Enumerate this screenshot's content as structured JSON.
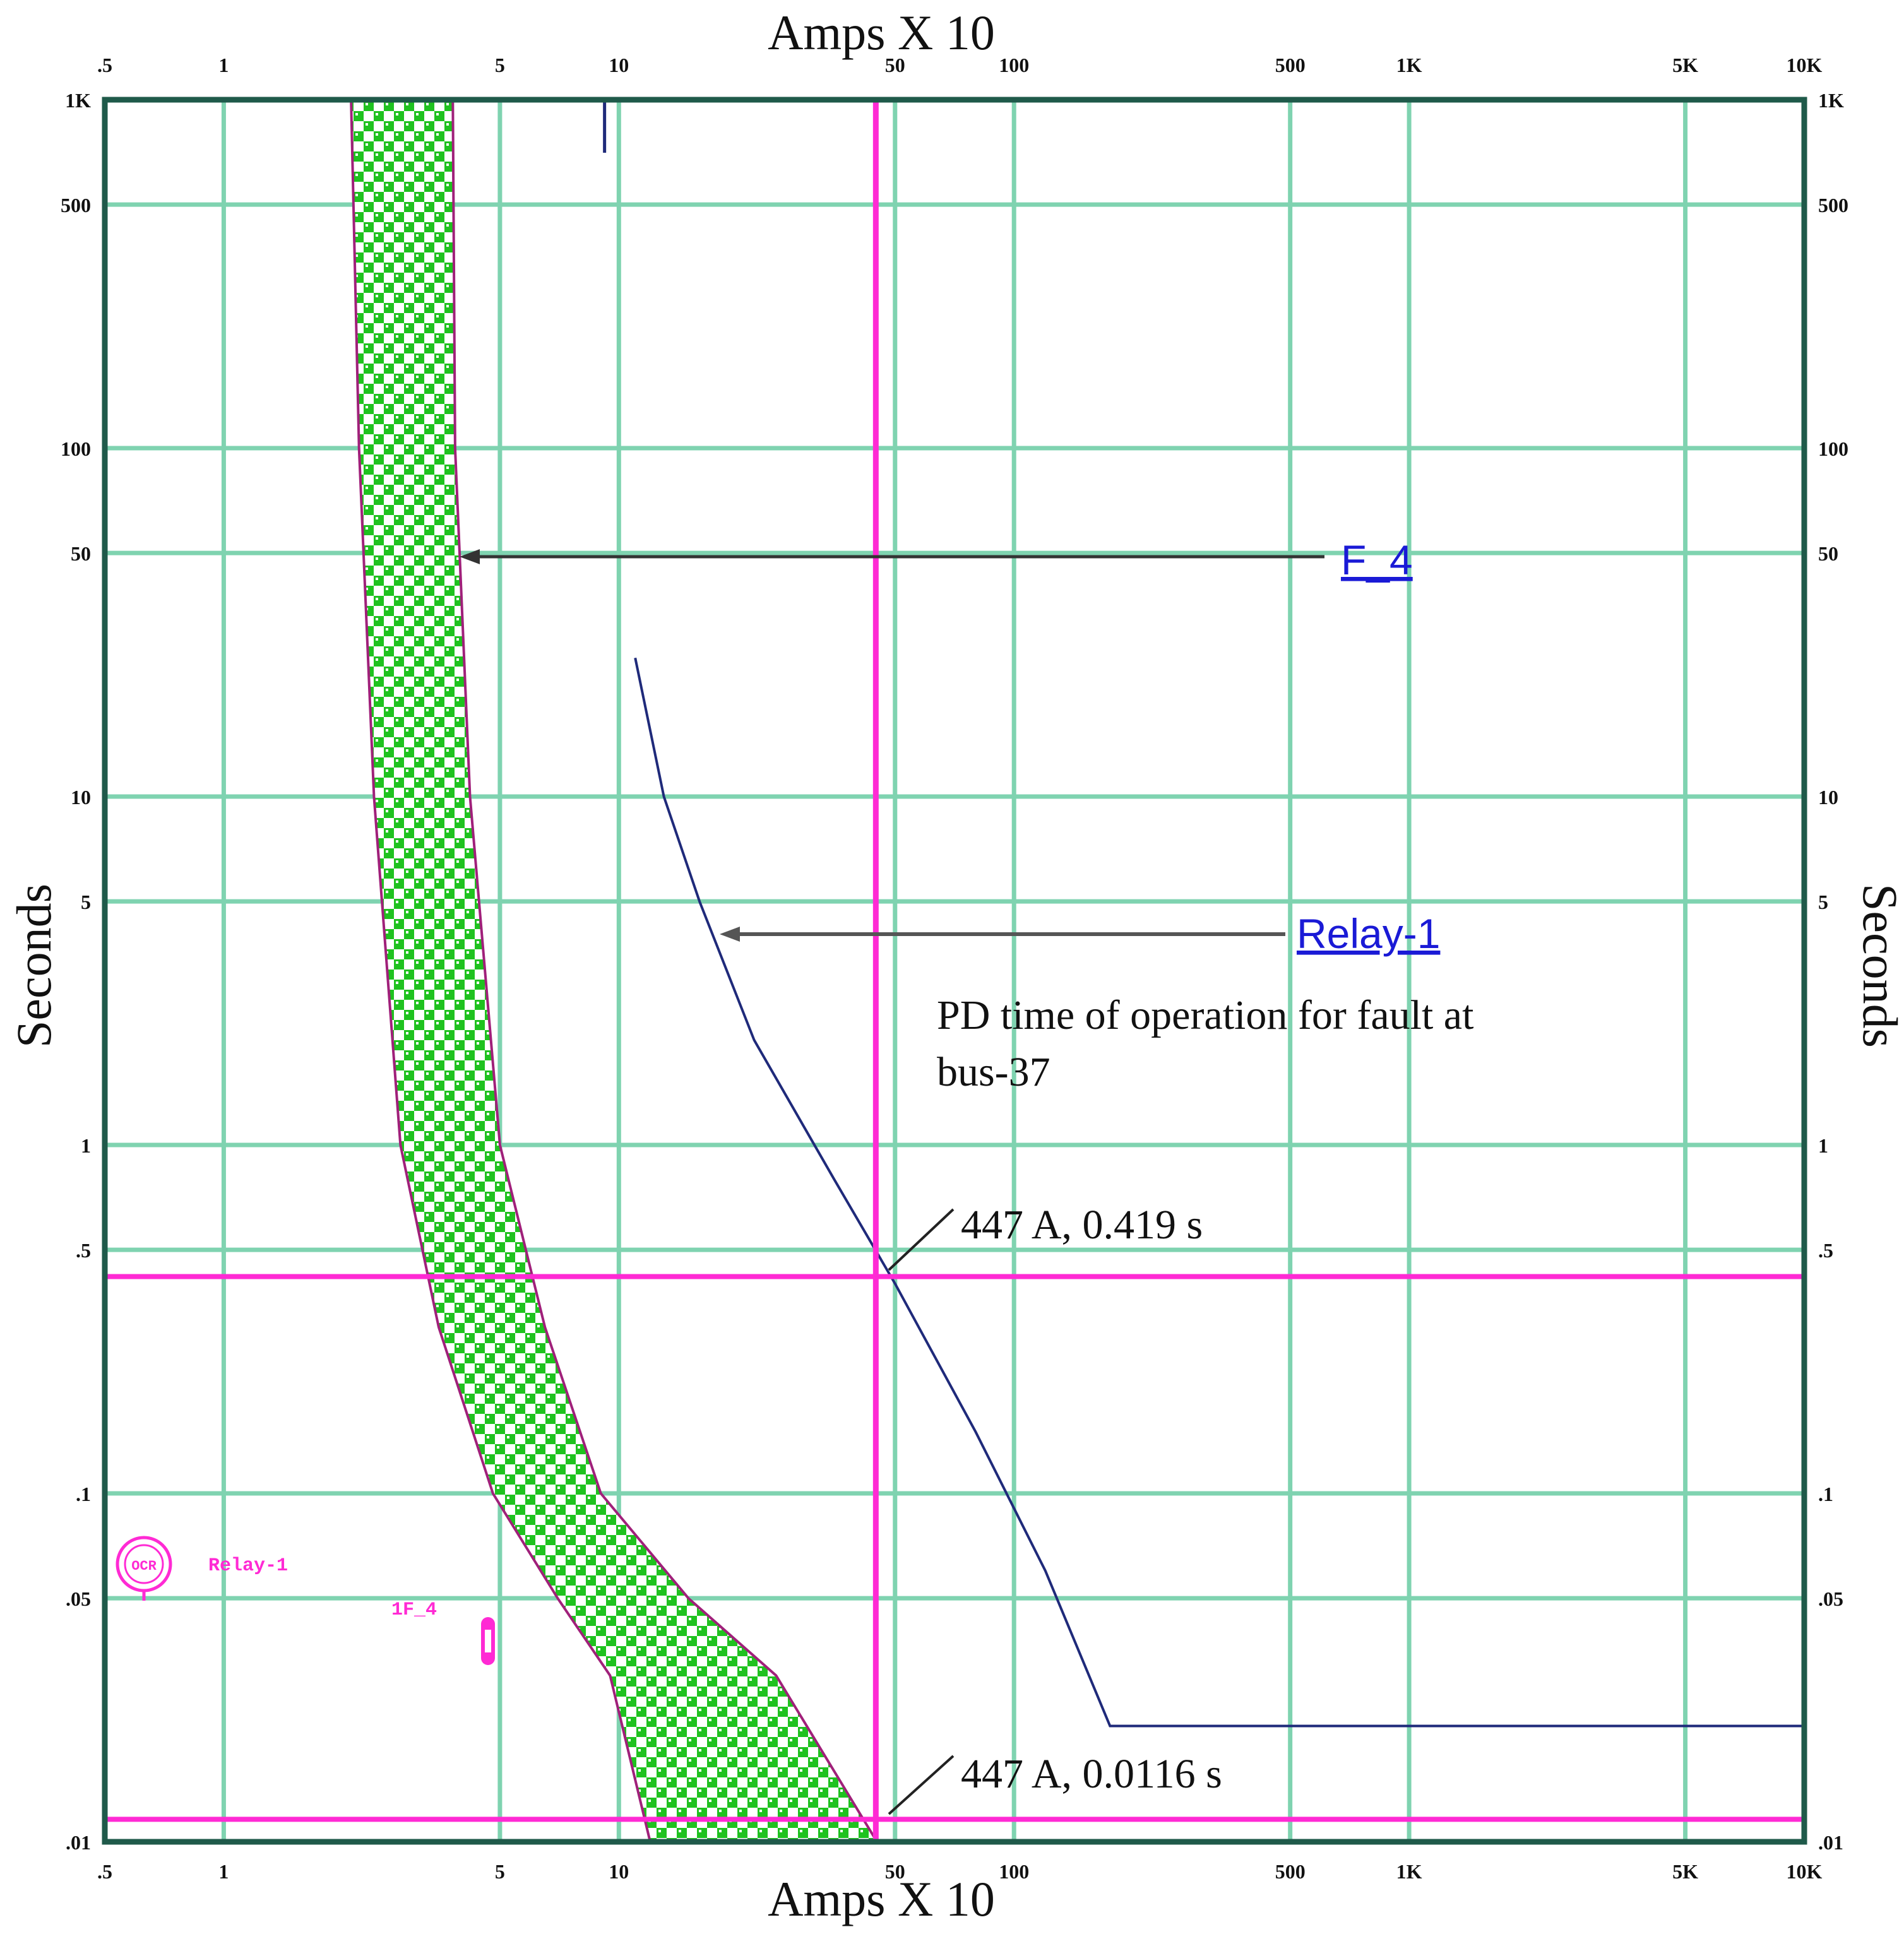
{
  "chart_data": {
    "type": "line",
    "scale": "log-log",
    "xlabel": "Amps  X  10",
    "ylabel": "Seconds",
    "xlim": [
      0.5,
      10000
    ],
    "ylim": [
      0.01,
      1000
    ],
    "grid": true,
    "x_ticks": [
      0.5,
      1,
      5,
      10,
      50,
      100,
      500,
      1000,
      5000,
      10000
    ],
    "x_tick_labels": [
      ".5",
      "1",
      "5",
      "10",
      "50",
      "100",
      "500",
      "1K",
      "5K",
      "10K"
    ],
    "y_ticks": [
      0.01,
      0.05,
      0.1,
      0.5,
      1,
      5,
      10,
      50,
      100,
      500,
      1000
    ],
    "y_tick_labels": [
      ".01",
      ".05",
      ".1",
      ".5",
      "1",
      "5",
      "10",
      "50",
      "100",
      "500",
      "1K"
    ],
    "series": [
      {
        "name": "F_4",
        "kind": "band",
        "lower_curve": {
          "x": [
            2.1,
            2.2,
            2.4,
            2.8,
            3.5,
            4.8,
            7.0,
            9.5,
            12.0
          ],
          "y": [
            1000,
            100,
            10,
            1,
            0.3,
            0.1,
            0.05,
            0.03,
            0.01
          ]
        },
        "upper_curve": {
          "x": [
            3.8,
            3.85,
            4.2,
            5.0,
            6.5,
            9.0,
            15.0,
            25.0,
            45.0
          ],
          "y": [
            1000,
            100,
            10,
            1,
            0.3,
            0.1,
            0.05,
            0.03,
            0.01
          ]
        }
      },
      {
        "name": "Relay-1",
        "kind": "curve",
        "x": [
          11,
          13,
          16,
          22,
          35,
          50,
          80,
          120,
          175,
          10000
        ],
        "y": [
          25,
          10,
          5,
          2,
          0.8,
          0.4,
          0.15,
          0.06,
          0.0215,
          0.0215
        ]
      }
    ],
    "reference_lines": {
      "vertical_x": 44.7,
      "horizontal_y": [
        0.419,
        0.0116
      ]
    },
    "annotations": [
      {
        "text": "447 A, 0.419 s",
        "x": 44.7,
        "y": 0.419
      },
      {
        "text": "447 A, 0.0116 s",
        "x": 44.7,
        "y": 0.0116
      },
      {
        "text": "PD time of operation for fault at",
        "line": 1
      },
      {
        "text": "bus-37",
        "line": 2
      }
    ],
    "labels": {
      "f4": "F_4",
      "relay": "Relay-1",
      "legend_relay": "Relay-1",
      "legend_fuse": "1F_4",
      "legend_relay_icon": "OCR"
    },
    "colors": {
      "grid": "#7fd3b0",
      "frame": "#1f5a4a",
      "magenta": "#ff2ad4",
      "relay_curve": "#1f2a7a",
      "band_fill": "#1fc21f",
      "band_edge": "#a0207a",
      "leader": "#333333"
    }
  }
}
